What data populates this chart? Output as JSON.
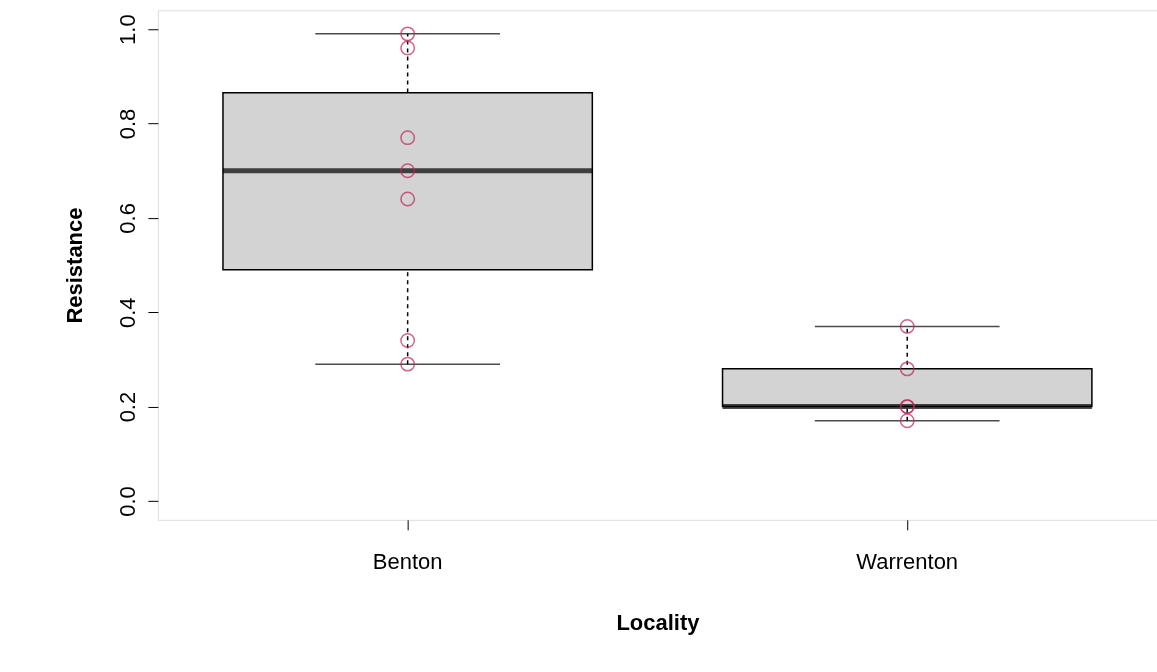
{
  "chart_data": {
    "type": "box",
    "xlabel": "Locality",
    "ylabel": "Resistance",
    "categories": [
      "Benton",
      "Warrenton"
    ],
    "boxes": [
      {
        "low": 0.29,
        "q1": 0.49,
        "median": 0.7,
        "q3": 0.865,
        "high": 0.99
      },
      {
        "low": 0.17,
        "q1": 0.2,
        "median": 0.2,
        "q3": 0.28,
        "high": 0.37
      }
    ],
    "color": "#d3d3d3",
    "series": [
      {
        "type": "scatter",
        "color": "#c0245a",
        "marker": "circle",
        "x": [
          "Benton",
          "Benton",
          "Benton",
          "Benton",
          "Benton",
          "Benton",
          "Benton",
          "Warrenton",
          "Warrenton",
          "Warrenton",
          "Warrenton",
          "Warrenton"
        ],
        "values": [
          0.99,
          0.96,
          0.77,
          0.7,
          0.64,
          0.34,
          0.29,
          0.37,
          0.28,
          0.2,
          0.2,
          0.17
        ]
      }
    ],
    "ylim": [
      -0.04,
      1.04
    ],
    "yticks": [
      {
        "value": 0,
        "label": "0.0"
      },
      {
        "value": 0.2,
        "label": "0.2"
      },
      {
        "value": 0.4,
        "label": "0.4"
      },
      {
        "value": 0.6,
        "label": "0.6"
      },
      {
        "value": 0.8,
        "label": "0.8"
      },
      {
        "value": 1,
        "label": "1.0"
      }
    ],
    "grid": false
  }
}
